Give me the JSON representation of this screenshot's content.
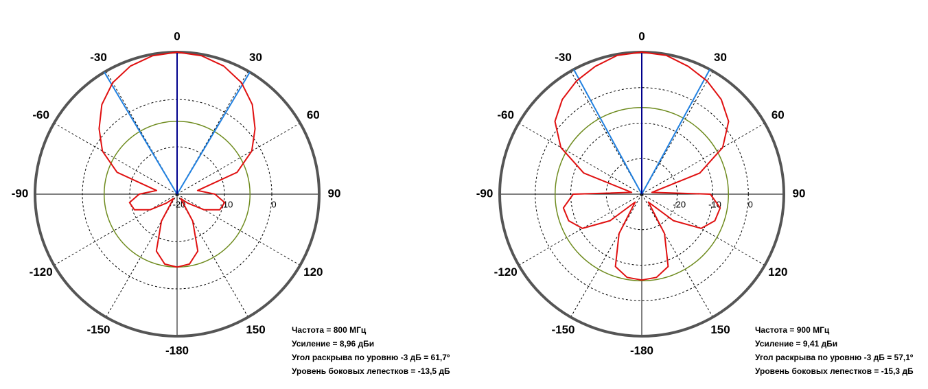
{
  "chart_data": [
    {
      "type": "polar",
      "theta": [
        -180,
        -170,
        -160,
        -150,
        -140,
        -130,
        -120,
        -110,
        -100,
        -90,
        -80,
        -70,
        -60,
        -50,
        -40,
        -30,
        -20,
        -10,
        0,
        10,
        20,
        30,
        40,
        50,
        60,
        70,
        80,
        90,
        100,
        110,
        120,
        130,
        140,
        150,
        160,
        170,
        180
      ],
      "series": [
        {
          "color": "#e01010",
          "values": [
            -4.6,
            -5.0,
            -7.2,
            -13.4,
            -18.8,
            -17.1,
            -13.4,
            -10.4,
            -9.8,
            -12.0,
            -15.6,
            -6.5,
            -1.8,
            1.5,
            4.7,
            7.2,
            8.8,
            9.7,
            10.0,
            9.7,
            8.8,
            7.2,
            4.7,
            1.5,
            -1.8,
            -6.5,
            -15.6,
            -12.0,
            -9.8,
            -10.4,
            -13.4,
            -17.1,
            -18.8,
            -13.4,
            -7.2,
            -5.0,
            -4.6
          ]
        }
      ],
      "rlim": [
        -20,
        10
      ],
      "rticks": [
        -20,
        -10,
        0
      ],
      "thetaticks": [
        0,
        30,
        60,
        90,
        120,
        150,
        -180,
        -150,
        -120,
        -90,
        -60,
        -30
      ],
      "level": -4.6,
      "level_color": "#6e8b1e",
      "main_direction": 0,
      "main_color": "#00008b",
      "beam_edges": [
        -30.8,
        30.8
      ],
      "beam_color": "#2080e0",
      "annotations": [
        "Частота = 800 МГц",
        "Усиление = 8,96 дБи",
        "Угол раскрыва по уровню -3 дБ = 61,7º",
        "Уровень боковых лепестков = -13,5 дБ"
      ]
    },
    {
      "type": "polar",
      "theta": [
        -180,
        -170,
        -160,
        -150,
        -140,
        -130,
        -120,
        -110,
        -100,
        -90,
        -80,
        -70,
        -60,
        -50,
        -40,
        -30,
        -20,
        -10,
        0,
        10,
        20,
        30,
        40,
        50,
        60,
        70,
        80,
        90,
        100,
        110,
        120,
        130,
        140,
        150,
        160,
        170,
        180
      ],
      "series": [
        {
          "color": "#e01010",
          "values": [
            -5.8,
            -6.2,
            -8.3,
            -17.2,
            -27.1,
            -18.4,
            -10.7,
            -8.1,
            -7.6,
            -10.7,
            -27.1,
            -12.6,
            -3.7,
            1.9,
            4.8,
            6.8,
            8.3,
            9.7,
            10.0,
            9.7,
            8.3,
            6.8,
            4.8,
            1.9,
            -3.7,
            -12.6,
            -27.1,
            -10.7,
            -7.6,
            -8.1,
            -10.7,
            -18.4,
            -27.1,
            -17.2,
            -8.3,
            -6.2,
            -5.8
          ]
        }
      ],
      "rlim": [
        -30,
        10
      ],
      "rticks": [
        -20,
        -10,
        0
      ],
      "thetaticks": [
        0,
        30,
        60,
        90,
        120,
        150,
        -180,
        -150,
        -120,
        -90,
        -60,
        -30
      ],
      "level": -5.6,
      "level_color": "#6e8b1e",
      "main_direction": 0,
      "main_color": "#00008b",
      "beam_edges": [
        -28.6,
        28.6
      ],
      "beam_color": "#2080e0",
      "annotations": [
        "Частота = 900 МГц",
        "Усиление = 9,41 дБи",
        "Угол раскрыва по уровню -3 дБ = 57,1º",
        "Уровень боковых лепестков = -15,3 дБ"
      ]
    }
  ]
}
